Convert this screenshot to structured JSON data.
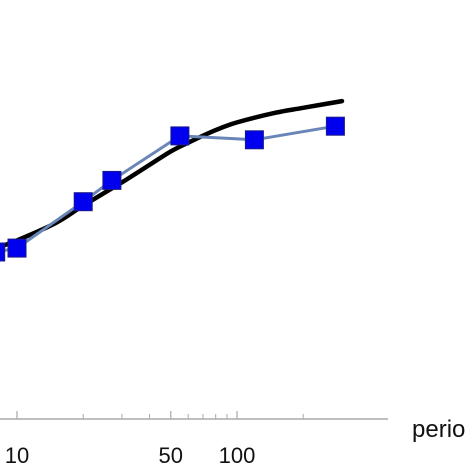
{
  "chart_data": {
    "type": "line",
    "x_scale": "log",
    "xlabel": "perio",
    "x_ticks": [
      {
        "value": 10,
        "label": "10"
      },
      {
        "value": 50,
        "label": "50"
      },
      {
        "value": 100,
        "label": "100"
      }
    ],
    "x_minor_ticks": [
      20,
      30,
      40,
      60,
      70,
      80,
      90,
      200
    ],
    "grid": false,
    "legend": "none",
    "series": [
      {
        "kind": "model-curve",
        "color": "#000000",
        "x": [
          8,
          10,
          15,
          20,
          30,
          40,
          50,
          60,
          80,
          100,
          150,
          200,
          300
        ],
        "y": [
          0.02,
          0.06,
          0.15,
          0.24,
          0.36,
          0.45,
          0.52,
          0.565,
          0.63,
          0.67,
          0.72,
          0.745,
          0.78
        ]
      },
      {
        "kind": "measured-points",
        "color": "#0000ee",
        "line_color": "#6a86b8",
        "marker": "square",
        "x": [
          8,
          10,
          20,
          27,
          55,
          120,
          280
        ],
        "y": [
          0.0,
          0.02,
          0.26,
          0.37,
          0.6,
          0.58,
          0.65
        ]
      }
    ]
  }
}
